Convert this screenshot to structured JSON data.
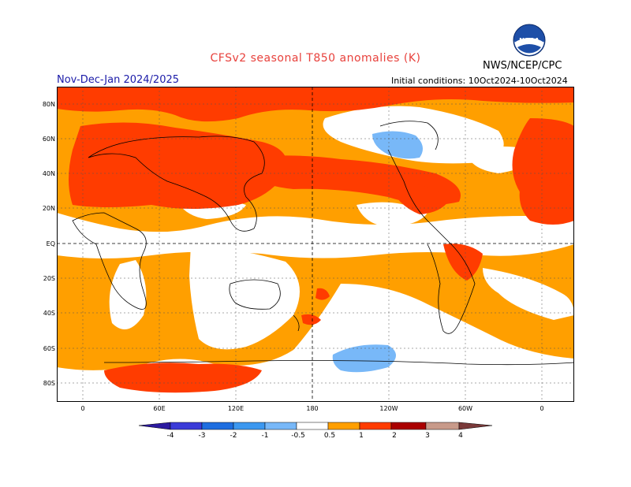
{
  "header": {
    "title": "CFSv2 seasonal T850 anomalies (K)",
    "agency": "NWS/NCEP/CPC",
    "period": "Nov-Dec-Jan 2024/2025",
    "initial_conditions": "Initial conditions: 10Oct2024-10Oct2024",
    "logo_text": "NOAA"
  },
  "map": {
    "latitude_labels": [
      "80N",
      "60N",
      "40N",
      "20N",
      "EQ",
      "20S",
      "40S",
      "60S",
      "80S"
    ],
    "longitude_labels": [
      "0",
      "60E",
      "120E",
      "180",
      "120W",
      "60W",
      "0"
    ]
  },
  "legend": {
    "tick_labels": [
      "-4",
      "-3",
      "-2",
      "-1",
      "-0.5",
      "0.5",
      "1",
      "2",
      "3",
      "4"
    ],
    "colors": [
      "#2c1aa0",
      "#3b3bd8",
      "#1e6ee0",
      "#3c98f0",
      "#78b8f8",
      "#ffffff",
      "#ff9f00",
      "#ff3c00",
      "#aa0000",
      "#c89a8a",
      "#7a3a3a"
    ],
    "colors_map": {
      "warm_light": "#ff9f00",
      "warm_strong": "#ff3c00",
      "cool_light": "#78b8f8",
      "cool_mid": "#5aa0f0",
      "neutral": "#ffffff"
    }
  }
}
